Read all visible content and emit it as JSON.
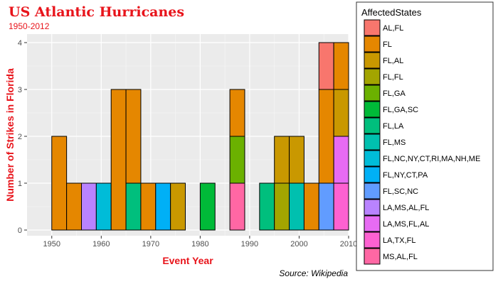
{
  "chart_data": {
    "type": "bar",
    "stacked": true,
    "title": "US Atlantic Hurricanes",
    "subtitle": "1950-2012",
    "xlabel": "Event Year",
    "ylabel": "Number of Strikes in Florida",
    "caption": "Source: Wikipedia",
    "xlim": [
      1945,
      2010
    ],
    "ylim": [
      0,
      4
    ],
    "xticks": [
      1950,
      1960,
      1970,
      1980,
      1990,
      2000,
      2010
    ],
    "yticks": [
      0,
      1,
      2,
      3,
      4
    ],
    "grid": true,
    "legend_position": "right",
    "legend_title": "AffectedStates",
    "categories": [
      "AL,FL",
      "FL",
      "FL,AL",
      "FL,FL",
      "FL,GA",
      "FL,GA,SC",
      "FL,LA",
      "FL,MS",
      "FL,NC,NY,CT,RI,MA,NH,ME",
      "FL,NY,CT,PA",
      "FL,SC,NC",
      "LA,MS,AL,FL",
      "LA,MS,FL,AL",
      "LA,TX,FL",
      "MS,AL,FL"
    ],
    "colors": [
      "#F8766D",
      "#E58700",
      "#C99800",
      "#A3A500",
      "#6BB100",
      "#00BA38",
      "#00BF7D",
      "#00C0AF",
      "#00BCD8",
      "#00B0F6",
      "#619CFF",
      "#B983FF",
      "#E76BF3",
      "#FD61D1",
      "#FF67A4"
    ],
    "bins": [
      {
        "start": 1950,
        "end": 1953,
        "stack": [
          [
            "FL",
            2
          ]
        ]
      },
      {
        "start": 1953,
        "end": 1956,
        "stack": [
          [
            "FL",
            1
          ]
        ]
      },
      {
        "start": 1956,
        "end": 1959,
        "stack": [
          [
            "LA,MS,AL,FL",
            1
          ]
        ]
      },
      {
        "start": 1959,
        "end": 1962,
        "stack": [
          [
            "FL,NC,NY,CT,RI,MA,NH,ME",
            1
          ]
        ]
      },
      {
        "start": 1962,
        "end": 1965,
        "stack": [
          [
            "FL",
            3
          ]
        ]
      },
      {
        "start": 1965,
        "end": 1968,
        "stack": [
          [
            "FL,LA",
            1
          ],
          [
            "FL",
            2
          ]
        ]
      },
      {
        "start": 1968,
        "end": 1971,
        "stack": [
          [
            "FL",
            1
          ]
        ]
      },
      {
        "start": 1971,
        "end": 1974,
        "stack": [
          [
            "FL,NY,CT,PA",
            1
          ]
        ]
      },
      {
        "start": 1974,
        "end": 1977,
        "stack": [
          [
            "FL,AL",
            1
          ]
        ]
      },
      {
        "start": 1977,
        "end": 1980,
        "stack": []
      },
      {
        "start": 1980,
        "end": 1983,
        "stack": [
          [
            "FL,GA,SC",
            1
          ]
        ]
      },
      {
        "start": 1983,
        "end": 1986,
        "stack": []
      },
      {
        "start": 1986,
        "end": 1989,
        "stack": [
          [
            "MS,AL,FL",
            1
          ],
          [
            "FL,GA",
            1
          ],
          [
            "FL",
            1
          ]
        ]
      },
      {
        "start": 1989,
        "end": 1992,
        "stack": []
      },
      {
        "start": 1992,
        "end": 1995,
        "stack": [
          [
            "FL,LA",
            1
          ]
        ]
      },
      {
        "start": 1995,
        "end": 1998,
        "stack": [
          [
            "FL,FL",
            1
          ],
          [
            "FL,AL",
            1
          ]
        ]
      },
      {
        "start": 1998,
        "end": 2001,
        "stack": [
          [
            "FL,MS",
            1
          ],
          [
            "FL,AL",
            1
          ]
        ]
      },
      {
        "start": 2001,
        "end": 2004,
        "stack": [
          [
            "FL",
            1
          ]
        ]
      },
      {
        "start": 2004,
        "end": 2007,
        "stack": [
          [
            "FL,SC,NC",
            1
          ],
          [
            "FL",
            2
          ],
          [
            "AL,FL",
            1
          ]
        ]
      },
      {
        "start": 2007,
        "end": 2010,
        "stack": [
          [
            "LA,TX,FL",
            1
          ],
          [
            "LA,MS,FL,AL",
            1
          ],
          [
            "FL,AL",
            1
          ],
          [
            "FL",
            1
          ]
        ]
      }
    ]
  }
}
